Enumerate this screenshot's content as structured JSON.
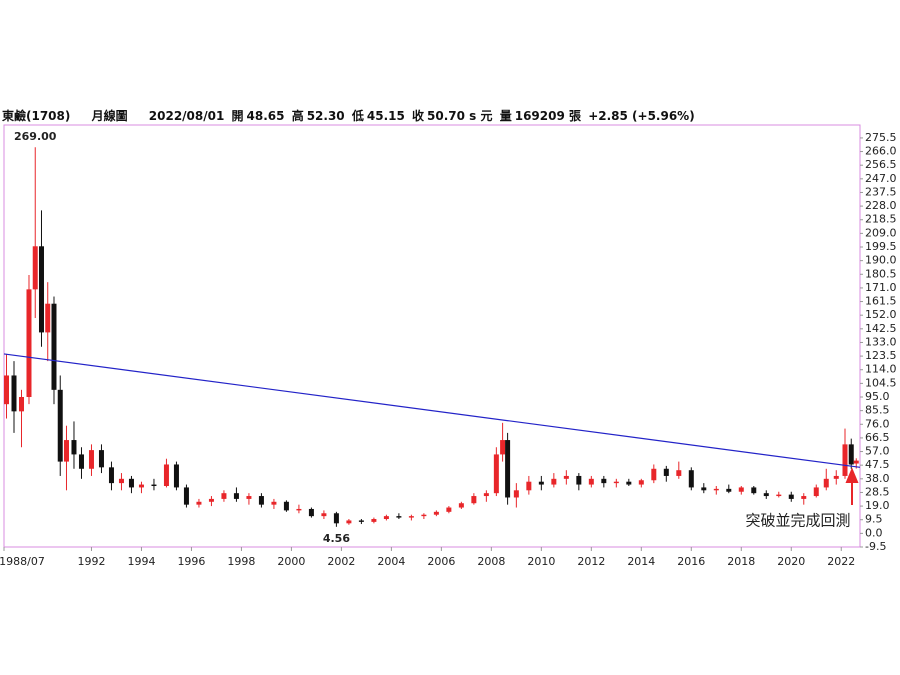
{
  "header": {
    "name": "東鹼(1708)",
    "period": "月線圖",
    "date": "2022/08/01",
    "open_label": "開",
    "open": "48.65",
    "high_label": "高",
    "high": "52.30",
    "low_label": "低",
    "low": "45.15",
    "close_label": "收",
    "close": "50.70 s 元",
    "volume_label": "量",
    "volume": "169209 張",
    "change": "+2.85 (+5.96%)"
  },
  "chart_data": {
    "type": "candlestick",
    "x": [
      1988.6,
      1988.9,
      1989.2,
      1989.5,
      1989.75,
      1990.0,
      1990.25,
      1990.5,
      1990.75,
      1991.0,
      1991.3,
      1991.6,
      1992.0,
      1992.4,
      1992.8,
      1993.2,
      1993.6,
      1994.0,
      1994.5,
      1995.0,
      1995.4,
      1995.8,
      1996.3,
      1996.8,
      1997.3,
      1997.8,
      1998.3,
      1998.8,
      1999.3,
      1999.8,
      2000.3,
      2000.8,
      2001.3,
      2001.8,
      2002.3,
      2002.8,
      2003.3,
      2003.8,
      2004.3,
      2004.8,
      2005.3,
      2005.8,
      2006.3,
      2006.8,
      2007.3,
      2007.8,
      2008.2,
      2008.45,
      2008.65,
      2009.0,
      2009.5,
      2010.0,
      2010.5,
      2011.0,
      2011.5,
      2012.0,
      2012.5,
      2013.0,
      2013.5,
      2014.0,
      2014.5,
      2015.0,
      2015.5,
      2016.0,
      2016.5,
      2017.0,
      2017.5,
      2018.0,
      2018.5,
      2019.0,
      2019.5,
      2020.0,
      2020.5,
      2021.0,
      2021.4,
      2021.8,
      2022.15,
      2022.4,
      2022.6
    ],
    "open": [
      90,
      110,
      85,
      95,
      170,
      200,
      140,
      160,
      100,
      50,
      65,
      55,
      45,
      58,
      46,
      35,
      38,
      32,
      34,
      33,
      48,
      32,
      20,
      22,
      24,
      28,
      24,
      26,
      20,
      22,
      16,
      17,
      12,
      14,
      7,
      9,
      8,
      10,
      12,
      11,
      12,
      13,
      15,
      18,
      21,
      26,
      28,
      55,
      65,
      25,
      30,
      36,
      34,
      38,
      40,
      34,
      38,
      35,
      36,
      34,
      37,
      45,
      40,
      44,
      32,
      30,
      31,
      29,
      32,
      28,
      26,
      27,
      24,
      26,
      32,
      38,
      40,
      62,
      48.65
    ],
    "high": [
      125,
      120,
      100,
      180,
      269,
      225,
      175,
      165,
      110,
      75,
      78,
      60,
      62,
      62,
      50,
      42,
      40,
      36,
      38,
      52,
      50,
      34,
      24,
      26,
      30,
      32,
      28,
      28,
      24,
      23,
      20,
      18,
      16,
      15,
      10,
      10,
      11,
      13,
      14,
      13,
      14,
      16,
      19,
      22,
      28,
      30,
      60,
      77,
      70,
      35,
      40,
      40,
      42,
      44,
      42,
      40,
      40,
      38,
      38,
      38,
      48,
      47,
      50,
      46,
      35,
      33,
      34,
      33,
      33,
      30,
      29,
      29,
      28,
      34,
      45,
      44,
      73,
      66,
      52.3
    ],
    "low": [
      80,
      70,
      60,
      90,
      150,
      130,
      120,
      90,
      40,
      30,
      45,
      38,
      40,
      42,
      30,
      30,
      28,
      28,
      30,
      32,
      30,
      18,
      18,
      19,
      22,
      22,
      20,
      18,
      17,
      15,
      14,
      11,
      10,
      4.56,
      6,
      6.5,
      7,
      9,
      10,
      9,
      10,
      12,
      14,
      17,
      20,
      22,
      26,
      50,
      20,
      18,
      27,
      30,
      32,
      34,
      30,
      32,
      32,
      32,
      33,
      32,
      35,
      36,
      38,
      30,
      28,
      27,
      28,
      27,
      27,
      24,
      25,
      22,
      20,
      25,
      30,
      34,
      38,
      45,
      45.15
    ],
    "close": [
      110,
      85,
      95,
      170,
      200,
      140,
      160,
      100,
      50,
      65,
      55,
      45,
      58,
      46,
      35,
      38,
      32,
      34,
      33,
      48,
      32,
      20,
      22,
      24,
      28,
      24,
      26,
      20,
      22,
      16,
      17,
      12,
      14,
      7,
      9,
      8,
      10,
      12,
      11,
      12,
      13,
      15,
      18,
      21,
      26,
      28,
      55,
      65,
      25,
      30,
      36,
      34,
      38,
      40,
      34,
      38,
      35,
      36,
      34,
      37,
      45,
      40,
      44,
      32,
      30,
      31,
      29,
      32,
      28,
      26,
      27,
      24,
      26,
      32,
      38,
      40,
      62,
      48,
      50.7
    ],
    "up_color": "#e8262a",
    "down_color": "#111111",
    "trendline": {
      "x": [
        1988.5,
        2022.75
      ],
      "y": [
        125,
        46
      ],
      "color": "#2323c8"
    },
    "annotations": {
      "max": "269.00",
      "min": "4.56",
      "note": "突破並完成回測"
    },
    "xlim": [
      1988.5,
      2022.75
    ],
    "xticks": [
      {
        "value": 1988.5,
        "label": "1988/07"
      },
      1992,
      1994,
      1996,
      1998,
      2000,
      2002,
      2004,
      2006,
      2008,
      2010,
      2012,
      2014,
      2016,
      2018,
      2020,
      2022
    ],
    "ylim": [
      -9.5,
      284.5
    ],
    "yticks": [
      -9.5,
      {
        "value": 0,
        "label": "0.0"
      },
      9.5,
      {
        "value": 19,
        "label": "19.0"
      },
      28.5,
      {
        "value": 38,
        "label": "38.0"
      },
      47.5,
      {
        "value": 57,
        "label": "57.0"
      },
      66.5,
      {
        "value": 76,
        "label": "76.0"
      },
      85.5,
      {
        "value": 95,
        "label": "95.0"
      },
      104.5,
      {
        "value": 114,
        "label": "114.0"
      },
      123.5,
      {
        "value": 133,
        "label": "133.0"
      },
      142.5,
      {
        "value": 152,
        "label": "152.0"
      },
      161.5,
      {
        "value": 171,
        "label": "171.0"
      },
      180.5,
      {
        "value": 190,
        "label": "190.0"
      },
      199.5,
      {
        "value": 209,
        "label": "209.0"
      },
      218.5,
      {
        "value": 228,
        "label": "228.0"
      },
      237.5,
      {
        "value": 247,
        "label": "247.0"
      },
      256.5,
      {
        "value": 266,
        "label": "266.0"
      },
      275.5
    ]
  }
}
